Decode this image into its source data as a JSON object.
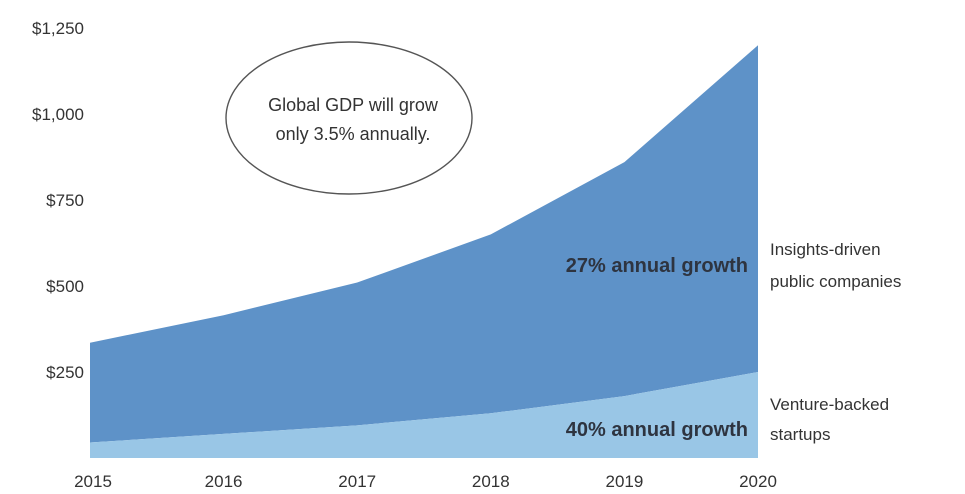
{
  "chart_data": {
    "type": "area",
    "stacked": true,
    "x": [
      "2015",
      "2016",
      "2017",
      "2018",
      "2019",
      "2020"
    ],
    "ylim": [
      0,
      1250
    ],
    "y_ticks": [
      250,
      500,
      750,
      1000,
      1250
    ],
    "y_tick_labels": [
      "$250",
      "$500",
      "$750",
      "$1,000",
      "$1,250"
    ],
    "grid": false,
    "legend": "none",
    "series": [
      {
        "name": "Venture-backed startups",
        "label_lines": [
          "Venture-backed",
          "startups"
        ],
        "growth_label": "40% annual growth",
        "color": "#99c6e6",
        "values": [
          45,
          70,
          95,
          130,
          180,
          250
        ]
      },
      {
        "name": "Insights-driven public companies",
        "label_lines": [
          "Insights-driven",
          "public companies"
        ],
        "growth_label": "27% annual growth",
        "color": "#5e92c8",
        "values": [
          290,
          345,
          415,
          520,
          680,
          950
        ]
      }
    ],
    "annotation": {
      "lines": [
        "Global GDP will grow",
        "only 3.5% annually."
      ],
      "shape": "ellipse"
    }
  }
}
